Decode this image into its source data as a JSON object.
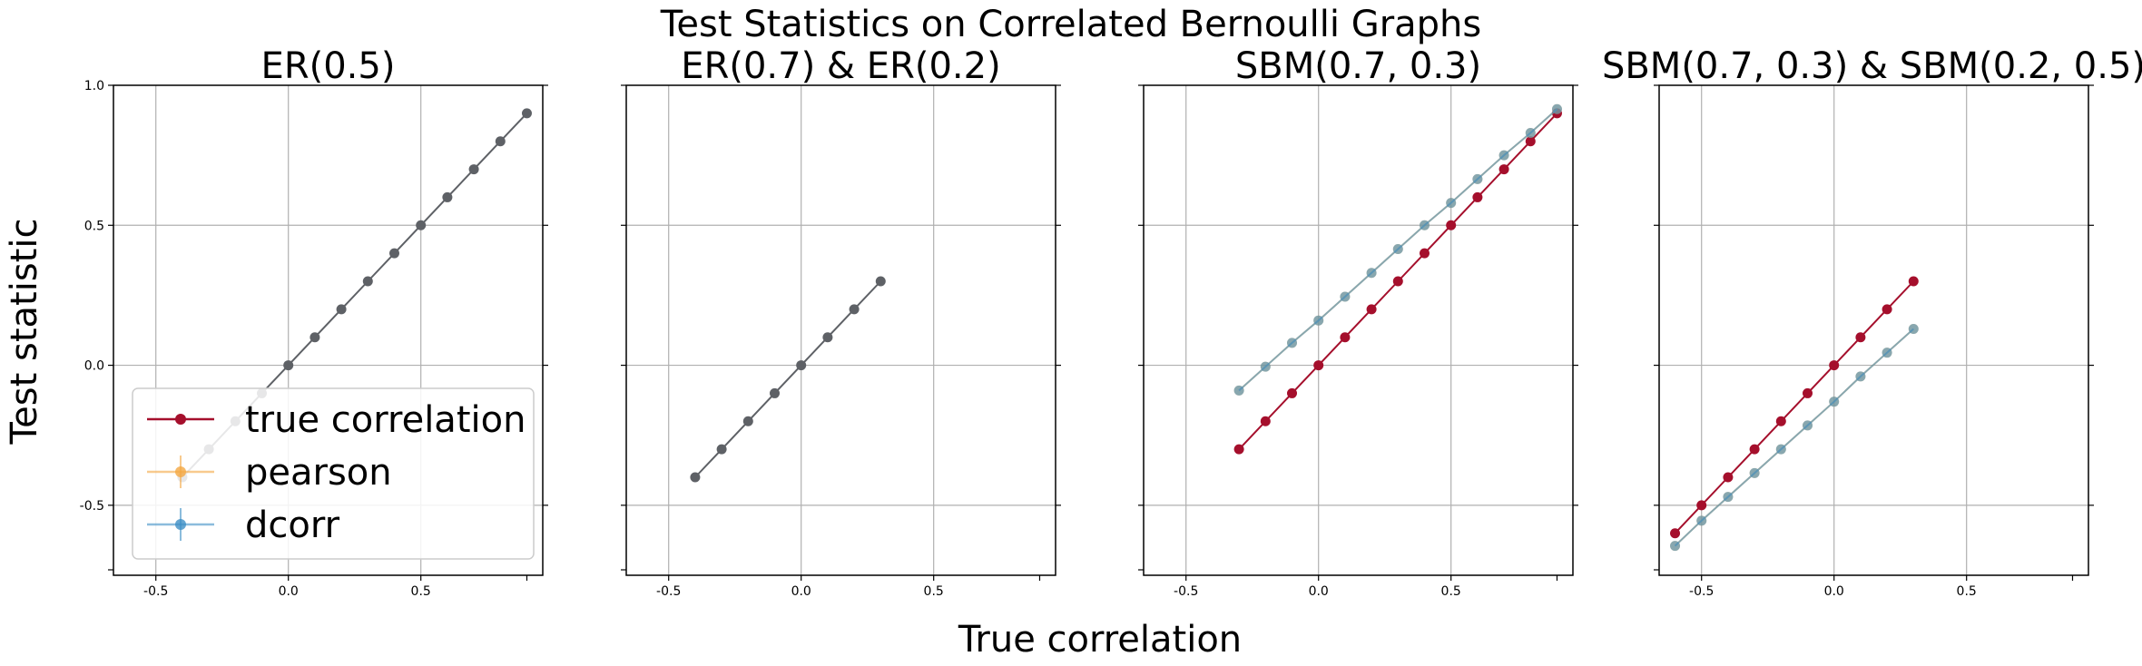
{
  "figure": {
    "suptitle": "Test Statistics on Correlated Bernoulli Graphs",
    "xlabel": "True correlation",
    "ylabel": "Test statistic"
  },
  "colors": {
    "true": "#a50f2c",
    "pearson": "#f4a742",
    "dcorr": "#3d8fc5",
    "overlap": "#5e6166",
    "grid": "#b0b0b0"
  },
  "legend": {
    "placement": "lower-left of first panel",
    "entries": [
      "true correlation",
      "pearson",
      "dcorr"
    ]
  },
  "chart_data": [
    {
      "type": "line",
      "title": "ER(0.5)",
      "xlim": [
        -0.66,
        0.96
      ],
      "ylim": [
        -0.75,
        1.0
      ],
      "xticks": [
        "-0.5",
        "0.0",
        "0.5"
      ],
      "yticks": [
        "-0.5",
        "0.0",
        "0.5",
        "1.0"
      ],
      "grid": true,
      "x": [
        -0.4,
        -0.3,
        -0.2,
        -0.1,
        0.0,
        0.1,
        0.2,
        0.3,
        0.4,
        0.5,
        0.6,
        0.7,
        0.8,
        0.9
      ],
      "series": [
        {
          "name": "true correlation",
          "values": [
            -0.4,
            -0.3,
            -0.2,
            -0.1,
            0.0,
            0.1,
            0.2,
            0.3,
            0.4,
            0.5,
            0.6,
            0.7,
            0.8,
            0.9
          ]
        },
        {
          "name": "pearson",
          "values": [
            -0.4,
            -0.3,
            -0.2,
            -0.1,
            0.0,
            0.1,
            0.2,
            0.3,
            0.4,
            0.5,
            0.6,
            0.7,
            0.8,
            0.9
          ]
        },
        {
          "name": "dcorr",
          "values": [
            -0.4,
            -0.3,
            -0.2,
            -0.1,
            0.0,
            0.1,
            0.2,
            0.3,
            0.4,
            0.5,
            0.6,
            0.7,
            0.8,
            0.9
          ]
        }
      ]
    },
    {
      "type": "line",
      "title": "ER(0.7) & ER(0.2)",
      "xlim": [
        -0.66,
        0.96
      ],
      "ylim": [
        -0.75,
        1.0
      ],
      "xticks": [
        "-0.5",
        "0.0",
        "0.5"
      ],
      "yticks": [],
      "grid": true,
      "x": [
        -0.4,
        -0.3,
        -0.2,
        -0.1,
        0.0,
        0.1,
        0.2,
        0.3
      ],
      "series": [
        {
          "name": "true correlation",
          "values": [
            -0.4,
            -0.3,
            -0.2,
            -0.1,
            0.0,
            0.1,
            0.2,
            0.3
          ]
        },
        {
          "name": "pearson",
          "values": [
            -0.4,
            -0.3,
            -0.2,
            -0.1,
            0.0,
            0.1,
            0.2,
            0.3
          ]
        },
        {
          "name": "dcorr",
          "values": [
            -0.4,
            -0.3,
            -0.2,
            -0.1,
            0.0,
            0.1,
            0.2,
            0.3
          ]
        }
      ]
    },
    {
      "type": "line",
      "title": "SBM(0.7, 0.3)",
      "xlim": [
        -0.66,
        0.96
      ],
      "ylim": [
        -0.75,
        1.0
      ],
      "xticks": [
        "-0.5",
        "0.0",
        "0.5"
      ],
      "yticks": [],
      "grid": true,
      "x": [
        -0.3,
        -0.2,
        -0.1,
        0.0,
        0.1,
        0.2,
        0.3,
        0.4,
        0.5,
        0.6,
        0.7,
        0.8,
        0.9
      ],
      "series": [
        {
          "name": "true correlation",
          "values": [
            -0.3,
            -0.2,
            -0.1,
            0.0,
            0.1,
            0.2,
            0.3,
            0.4,
            0.5,
            0.6,
            0.7,
            0.8,
            0.9
          ]
        },
        {
          "name": "pearson",
          "values": [
            -0.09,
            -0.005,
            0.08,
            0.16,
            0.245,
            0.33,
            0.415,
            0.5,
            0.58,
            0.665,
            0.75,
            0.83,
            0.915
          ]
        },
        {
          "name": "dcorr",
          "values": [
            -0.09,
            -0.005,
            0.08,
            0.16,
            0.245,
            0.33,
            0.415,
            0.5,
            0.58,
            0.665,
            0.75,
            0.83,
            0.915
          ]
        }
      ]
    },
    {
      "type": "line",
      "title": "SBM(0.7, 0.3) & SBM(0.2, 0.5)",
      "xlim": [
        -0.66,
        0.96
      ],
      "ylim": [
        -0.75,
        1.0
      ],
      "xticks": [
        "-0.5",
        "0.0",
        "0.5"
      ],
      "yticks": [],
      "grid": true,
      "x": [
        -0.6,
        -0.5,
        -0.4,
        -0.3,
        -0.2,
        -0.1,
        0.0,
        0.1,
        0.2,
        0.3
      ],
      "series": [
        {
          "name": "true correlation",
          "values": [
            -0.6,
            -0.5,
            -0.4,
            -0.3,
            -0.2,
            -0.1,
            0.0,
            0.1,
            0.2,
            0.3
          ]
        },
        {
          "name": "pearson",
          "values": [
            -0.645,
            -0.555,
            -0.47,
            -0.385,
            -0.3,
            -0.215,
            -0.13,
            -0.04,
            0.045,
            0.13
          ]
        },
        {
          "name": "dcorr",
          "values": [
            -0.645,
            -0.555,
            -0.47,
            -0.385,
            -0.3,
            -0.215,
            -0.13,
            -0.04,
            0.045,
            0.13
          ]
        }
      ]
    }
  ]
}
